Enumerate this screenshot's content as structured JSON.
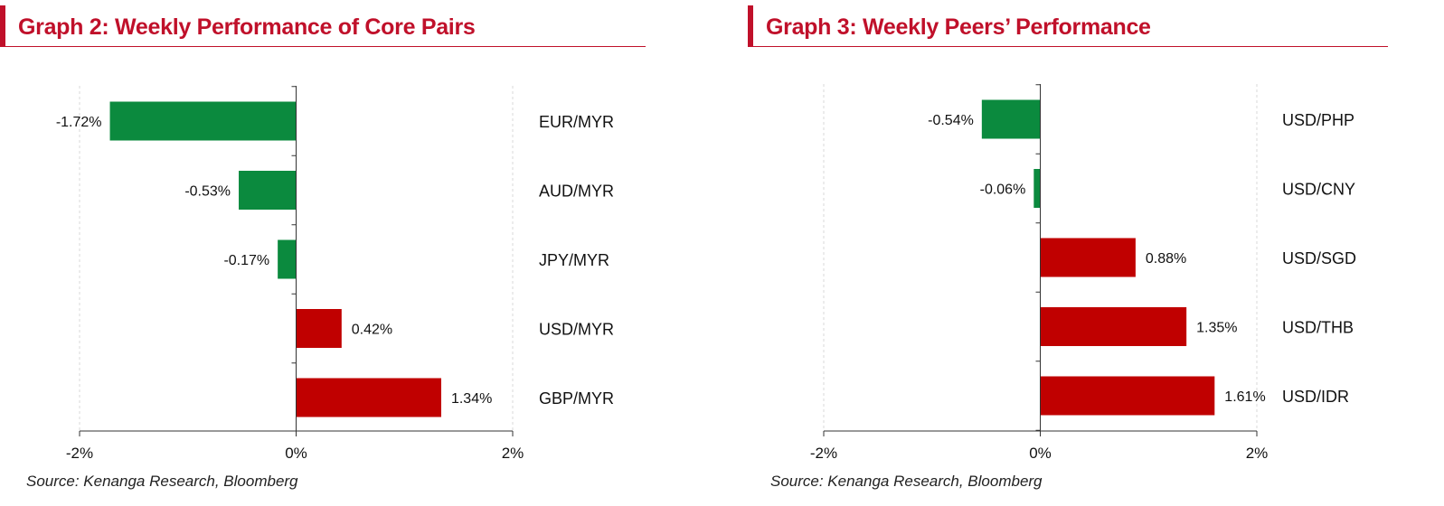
{
  "theme": {
    "title_color": "#c0102a",
    "positive_color": "#c00000",
    "negative_color": "#0b8a3e",
    "axis_color": "#333333",
    "grid_color": "#d9d9d9",
    "text_color": "#111111"
  },
  "panels": [
    {
      "title": "Graph 2: Weekly Performance of Core Pairs",
      "source": "Source: Kenanga Research, Bloomberg",
      "chart_data": {
        "type": "bar",
        "orientation": "horizontal",
        "categories": [
          "EUR/MYR",
          "AUD/MYR",
          "JPY/MYR",
          "USD/MYR",
          "GBP/MYR"
        ],
        "values": [
          -1.72,
          -0.53,
          -0.17,
          0.42,
          1.34
        ],
        "value_labels": [
          "-1.72%",
          "-0.53%",
          "-0.17%",
          "0.42%",
          "1.34%"
        ],
        "xlim": [
          -2,
          2
        ],
        "x_ticks": [
          -2,
          0,
          2
        ],
        "x_tick_labels": [
          "-2%",
          "0%",
          "2%"
        ],
        "title": "Graph 2: Weekly Performance of Core Pairs",
        "xlabel": "",
        "ylabel": "",
        "grid": "vertical dashed",
        "legend": "none"
      }
    },
    {
      "title": "Graph 3: Weekly Peers’ Performance",
      "source": "Source: Kenanga Research, Bloomberg",
      "chart_data": {
        "type": "bar",
        "orientation": "horizontal",
        "categories": [
          "USD/PHP",
          "USD/CNY",
          "USD/SGD",
          "USD/THB",
          "USD/IDR"
        ],
        "values": [
          -0.54,
          -0.06,
          0.88,
          1.35,
          1.61
        ],
        "value_labels": [
          "-0.54%",
          "-0.06%",
          "0.88%",
          "1.35%",
          "1.61%"
        ],
        "xlim": [
          -2,
          2
        ],
        "x_ticks": [
          -2,
          0,
          2
        ],
        "x_tick_labels": [
          "-2%",
          "0%",
          "2%"
        ],
        "title": "Graph 3: Weekly Peers’ Performance",
        "xlabel": "",
        "ylabel": "",
        "grid": "vertical dashed",
        "legend": "none"
      }
    }
  ]
}
